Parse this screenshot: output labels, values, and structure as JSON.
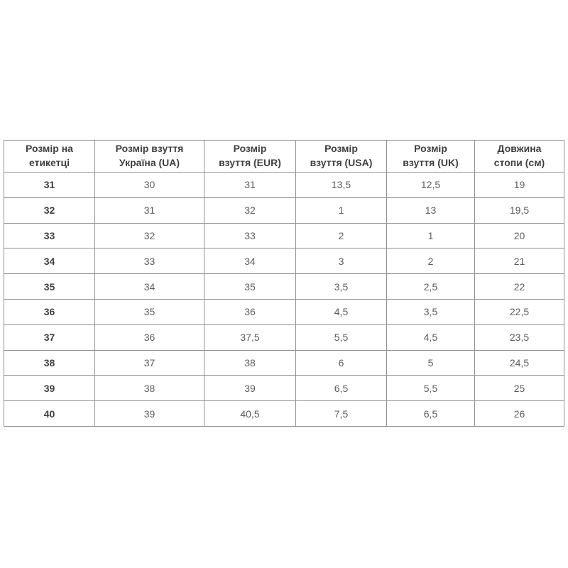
{
  "colors": {
    "background": "#ffffff",
    "border": "#919191",
    "header_text": "#404040",
    "cell_text": "#5d5d5d",
    "label_col_text": "#3f3f3f"
  },
  "table": {
    "headers": [
      {
        "line1": "Розмір на",
        "line2": "етикетці"
      },
      {
        "line1": "Розмір взуття",
        "line2": "Україна (UA)"
      },
      {
        "line1": "Розмір",
        "line2": "взуття (EUR)"
      },
      {
        "line1": "Розмір",
        "line2": "взуття (USA)"
      },
      {
        "line1": "Розмір",
        "line2": "взуття (UK)"
      },
      {
        "line1": "Довжина",
        "line2": "стопи (см)"
      }
    ],
    "rows": [
      [
        "31",
        "30",
        "31",
        "13,5",
        "12,5",
        "19"
      ],
      [
        "32",
        "31",
        "32",
        "1",
        "13",
        "19,5"
      ],
      [
        "33",
        "32",
        "33",
        "2",
        "1",
        "20"
      ],
      [
        "34",
        "33",
        "34",
        "3",
        "2",
        "21"
      ],
      [
        "35",
        "34",
        "35",
        "3,5",
        "2,5",
        "22"
      ],
      [
        "36",
        "35",
        "36",
        "4,5",
        "3,5",
        "22,5"
      ],
      [
        "37",
        "36",
        "37,5",
        "5,5",
        "4,5",
        "23,5"
      ],
      [
        "38",
        "37",
        "38",
        "6",
        "5",
        "24,5"
      ],
      [
        "39",
        "38",
        "39",
        "6,5",
        "5,5",
        "25"
      ],
      [
        "40",
        "39",
        "40,5",
        "7,5",
        "6,5",
        "26"
      ]
    ]
  },
  "chart_data": {
    "type": "table",
    "title": "",
    "columns": [
      "Розмір на етикетці",
      "Розмір взуття Україна (UA)",
      "Розмір взуття (EUR)",
      "Розмір взуття (USA)",
      "Розмір взуття (UK)",
      "Довжина стопи (см)"
    ],
    "rows": [
      [
        "31",
        "30",
        "31",
        "13,5",
        "12,5",
        "19"
      ],
      [
        "32",
        "31",
        "32",
        "1",
        "13",
        "19,5"
      ],
      [
        "33",
        "32",
        "33",
        "2",
        "1",
        "20"
      ],
      [
        "34",
        "33",
        "34",
        "3",
        "2",
        "21"
      ],
      [
        "35",
        "34",
        "35",
        "3,5",
        "2,5",
        "22"
      ],
      [
        "36",
        "35",
        "36",
        "4,5",
        "3,5",
        "22,5"
      ],
      [
        "37",
        "36",
        "37,5",
        "5,5",
        "4,5",
        "23,5"
      ],
      [
        "38",
        "37",
        "38",
        "6",
        "5",
        "24,5"
      ],
      [
        "39",
        "38",
        "39",
        "6,5",
        "5,5",
        "25"
      ],
      [
        "40",
        "39",
        "40,5",
        "7,5",
        "6,5",
        "26"
      ]
    ],
    "layout": {
      "grid": true,
      "decimal_separator": ",",
      "header_bold": true,
      "first_column_bold": true
    }
  }
}
